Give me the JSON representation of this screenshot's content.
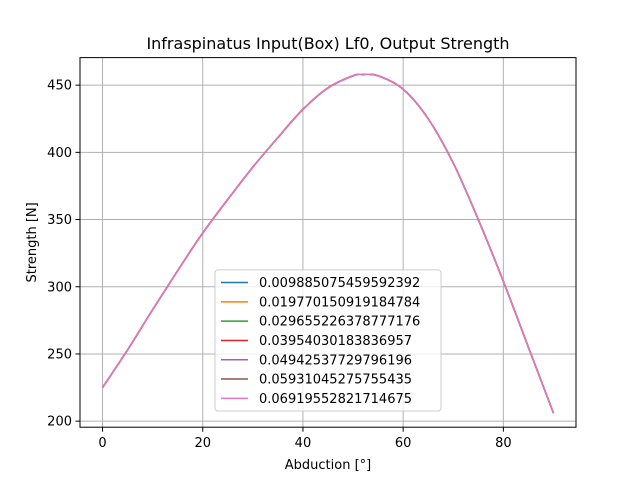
{
  "chart_data": {
    "type": "line",
    "title": "Infraspinatus Input(Box) Lf0, Output Strength",
    "xlabel": "Abduction [°]",
    "ylabel": "Strength [N]",
    "xlim": [
      -4.5,
      94.5
    ],
    "ylim": [
      195.5,
      470.5
    ],
    "xticks": [
      0,
      20,
      40,
      60,
      80
    ],
    "yticks": [
      200,
      250,
      300,
      350,
      400,
      450
    ],
    "grid": true,
    "legend_position": "lower-center",
    "x": [
      0,
      5,
      10,
      15,
      20,
      25,
      30,
      35,
      40,
      45,
      50,
      52,
      55,
      60,
      65,
      70,
      75,
      80,
      85,
      90
    ],
    "series": [
      {
        "name": "0.009885075459592392",
        "color": "#1f77b4",
        "values": [
          225,
          253,
          283,
          312,
          340,
          365,
          389,
          411,
          432,
          448,
          457,
          458,
          457,
          447,
          425,
          392,
          350,
          304,
          255,
          206
        ]
      },
      {
        "name": "0.019770150919184784",
        "color": "#ff7f0e",
        "values": [
          225,
          253,
          283,
          312,
          340,
          365,
          389,
          411,
          432,
          448,
          457,
          458,
          457,
          447,
          425,
          392,
          350,
          304,
          255,
          206
        ]
      },
      {
        "name": "0.029655226378777176",
        "color": "#2ca02c",
        "values": [
          225,
          253,
          283,
          312,
          340,
          365,
          389,
          411,
          432,
          448,
          457,
          458,
          457,
          447,
          425,
          392,
          350,
          304,
          255,
          206
        ]
      },
      {
        "name": "0.03954030183836957",
        "color": "#d62728",
        "values": [
          225,
          253,
          283,
          312,
          340,
          365,
          389,
          411,
          432,
          448,
          457,
          458,
          457,
          447,
          425,
          392,
          350,
          304,
          255,
          206
        ]
      },
      {
        "name": "0.04942537729796196",
        "color": "#9467bd",
        "values": [
          225,
          253,
          283,
          312,
          340,
          365,
          389,
          411,
          432,
          448,
          457,
          458,
          457,
          447,
          425,
          392,
          350,
          304,
          255,
          206
        ]
      },
      {
        "name": "0.05931045275755435",
        "color": "#8c564b",
        "values": [
          225,
          253,
          283,
          312,
          340,
          365,
          389,
          411,
          432,
          448,
          457,
          458,
          457,
          447,
          425,
          392,
          350,
          304,
          255,
          206
        ]
      },
      {
        "name": "0.06919552821714675",
        "color": "#e377c2",
        "values": [
          225,
          253,
          283,
          312,
          340,
          365,
          389,
          411,
          432,
          448,
          457,
          458,
          457,
          447,
          425,
          392,
          350,
          304,
          255,
          206
        ]
      }
    ]
  }
}
